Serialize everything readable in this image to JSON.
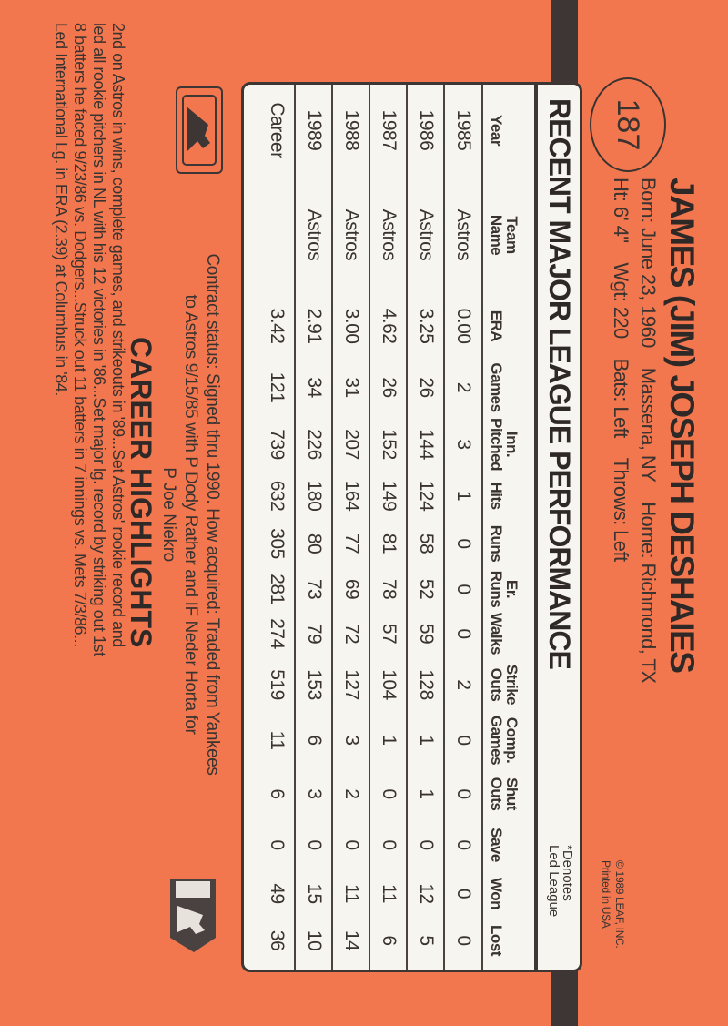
{
  "card": {
    "number": "187",
    "name": "JAMES (JIM) JOSEPH DESHAIES",
    "born": "Born: June 23, 1960",
    "birthplace": "Massena, NY",
    "home": "Home: Richmond, TX",
    "height": "Ht: 6' 4\"",
    "weight": "Wgt: 220",
    "bats": "Bats: Left",
    "throws": "Throws: Left",
    "copyright": "© 1989 LEAF, INC.",
    "printed": "Printed in USA",
    "colors": {
      "background": "#f2774f",
      "ink": "#3a3330",
      "panel": "#f7f5f0"
    }
  },
  "stats": {
    "title": "RECENT MAJOR LEAGUE PERFORMANCE",
    "denotes_line1": "*Denotes",
    "denotes_line2": "Led League",
    "headers": [
      {
        "l1": "",
        "l2": "Year"
      },
      {
        "l1": "Team",
        "l2": "Name"
      },
      {
        "l1": "",
        "l2": "ERA"
      },
      {
        "l1": "",
        "l2": "Games"
      },
      {
        "l1": "Inn.",
        "l2": "Pitched"
      },
      {
        "l1": "",
        "l2": "Hits"
      },
      {
        "l1": "",
        "l2": "Runs"
      },
      {
        "l1": "Er.",
        "l2": "Runs"
      },
      {
        "l1": "",
        "l2": "Walks"
      },
      {
        "l1": "Strike",
        "l2": "Outs"
      },
      {
        "l1": "Comp.",
        "l2": "Games"
      },
      {
        "l1": "Shut",
        "l2": "Outs"
      },
      {
        "l1": "",
        "l2": "Save"
      },
      {
        "l1": "",
        "l2": "Won"
      },
      {
        "l1": "",
        "l2": "Lost"
      }
    ],
    "rows": [
      [
        "1985",
        "Astros",
        "0.00",
        "2",
        "3",
        "1",
        "0",
        "0",
        "0",
        "2",
        "0",
        "0",
        "0",
        "0",
        "0"
      ],
      [
        "1986",
        "Astros",
        "3.25",
        "26",
        "144",
        "124",
        "58",
        "52",
        "59",
        "128",
        "1",
        "1",
        "0",
        "12",
        "5"
      ],
      [
        "1987",
        "Astros",
        "4.62",
        "26",
        "152",
        "149",
        "81",
        "78",
        "57",
        "104",
        "1",
        "0",
        "0",
        "11",
        "6"
      ],
      [
        "1988",
        "Astros",
        "3.00",
        "31",
        "207",
        "164",
        "77",
        "69",
        "72",
        "127",
        "3",
        "2",
        "0",
        "11",
        "14"
      ],
      [
        "1989",
        "Astros",
        "2.91",
        "34",
        "226",
        "180",
        "80",
        "73",
        "79",
        "153",
        "6",
        "3",
        "0",
        "15",
        "10"
      ],
      [
        "Career",
        "",
        "3.42",
        "121",
        "739",
        "632",
        "305",
        "281",
        "274",
        "519",
        "11",
        "6",
        "0",
        "49",
        "36"
      ]
    ]
  },
  "contract": {
    "line1": "Contract status: Signed thru 1990. How acquired: Traded from Yankees",
    "line2": "to Astros 9/15/85 with P Dody Rather and IF Neder Horta for",
    "line3": "P Joe Niekro"
  },
  "highlights": {
    "title": "CAREER HIGHLIGHTS",
    "lines": [
      "2nd on Astros in wins, complete games, and strikeouts in '89...Set Astros' rookie record and",
      "led all rookie pitchers in NL with his 12 victories in '86...Set major lg. record by striking out 1st",
      "8 batters he faced 9/23/86 vs. Dodgers...Struck out 11 batters in 7 innings vs. Mets 7/3/86...",
      "Led International Lg. in ERA (2.39) at Columbus in '84."
    ]
  },
  "logos": {
    "left": "mlb-logo",
    "right": "mlbpa-logo"
  }
}
